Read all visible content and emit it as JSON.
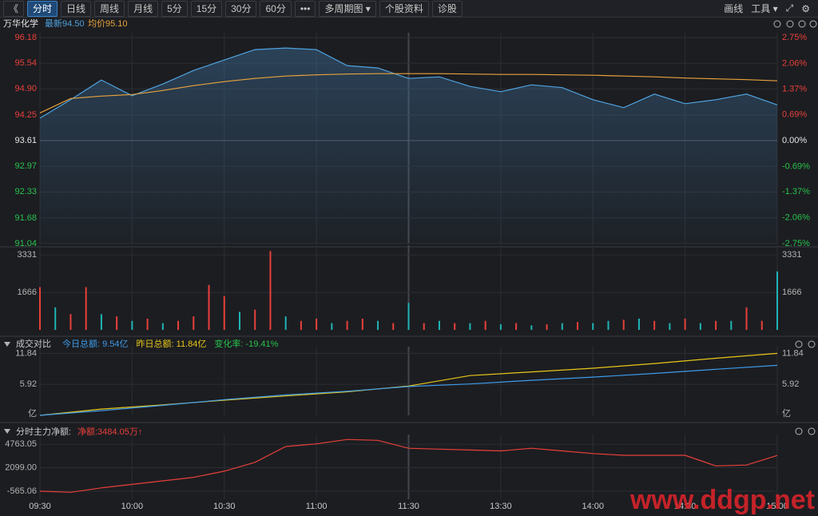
{
  "toolbar": {
    "left": [
      "《",
      "分时",
      "日线",
      "周线",
      "月线",
      "5分",
      "15分",
      "30分",
      "60分",
      "•••",
      "多周期图 ▾",
      "个股资料",
      "诊股"
    ],
    "right": [
      "画线",
      "工具 ▾",
      "⤢",
      "⚙"
    ]
  },
  "stock": {
    "name": "万华化学",
    "latest": "最新94.50",
    "avg": "均价95.10"
  },
  "watermark": "www.ddgp.net",
  "chart_data": [
    {
      "type": "line",
      "x": [
        0,
        10,
        20,
        30,
        40,
        50,
        60,
        70,
        80,
        90,
        100,
        110,
        120,
        130,
        140,
        150,
        160,
        170,
        180,
        190,
        200,
        210,
        220,
        230,
        240
      ],
      "xlim": [
        0,
        240
      ],
      "xticks": [
        {
          "value": 0,
          "label": "09:30"
        },
        {
          "value": 30,
          "label": "10:00"
        },
        {
          "value": 60,
          "label": "10:30"
        },
        {
          "value": 90,
          "label": "11:00"
        },
        {
          "value": 120,
          "label": "11:30"
        },
        {
          "value": 150,
          "label": "13:30"
        },
        {
          "value": 180,
          "label": "14:00"
        },
        {
          "value": 210,
          "label": "14:30"
        },
        {
          "value": 240,
          "label": "15:00"
        }
      ],
      "ylim": [
        91.04,
        96.18
      ],
      "yticks": [
        96.18,
        95.54,
        {
          "value": 94.9,
          "label": "94.90"
        },
        94.25,
        93.61,
        92.97,
        92.33,
        91.68,
        91.04
      ],
      "y2lim": [
        -2.75,
        2.75
      ],
      "y2ticks": [
        {
          "value": 2.75,
          "label": "2.75%"
        },
        {
          "value": 2.06,
          "label": "2.06%"
        },
        {
          "value": 1.37,
          "label": "1.37%"
        },
        {
          "value": 0.69,
          "label": "0.69%"
        },
        {
          "value": 0,
          "label": "0.00%"
        },
        {
          "value": -0.69,
          "label": "-0.69%"
        },
        {
          "value": -1.37,
          "label": "-1.37%"
        },
        {
          "value": -2.06,
          "label": "-2.06%"
        },
        {
          "value": -2.75,
          "label": "-2.75%"
        }
      ],
      "series": [
        {
          "color": "#4fa3e0",
          "values": [
            94.17,
            94.63,
            95.12,
            94.73,
            95.02,
            95.36,
            95.62,
            95.88,
            95.92,
            95.88,
            95.48,
            95.42,
            95.16,
            95.2,
            94.96,
            94.83,
            95.0,
            94.93,
            94.63,
            94.43,
            94.77,
            94.53,
            94.63,
            94.77,
            94.5
          ]
        },
        {
          "color": "#e8a33c",
          "values": [
            94.3,
            94.66,
            94.72,
            94.76,
            94.86,
            94.98,
            95.08,
            95.16,
            95.22,
            95.25,
            95.27,
            95.28,
            95.28,
            95.28,
            95.27,
            95.26,
            95.26,
            95.25,
            95.24,
            95.22,
            95.2,
            95.17,
            95.15,
            95.13,
            95.1
          ]
        }
      ]
    },
    {
      "type": "bar",
      "x": [
        0,
        5,
        10,
        15,
        20,
        25,
        30,
        35,
        40,
        45,
        50,
        55,
        60,
        65,
        70,
        75,
        80,
        85,
        90,
        95,
        100,
        105,
        110,
        115,
        120,
        125,
        130,
        135,
        140,
        145,
        150,
        155,
        160,
        165,
        170,
        175,
        180,
        185,
        190,
        195,
        200,
        205,
        210,
        215,
        220,
        225,
        230,
        235,
        240
      ],
      "xlim": [
        0,
        240
      ],
      "values": [
        1900,
        1000,
        700,
        1900,
        700,
        600,
        400,
        500,
        300,
        400,
        600,
        2000,
        1500,
        800,
        900,
        3500,
        600,
        400,
        500,
        300,
        400,
        500,
        400,
        300,
        1200,
        300,
        400,
        300,
        300,
        400,
        250,
        300,
        200,
        250,
        300,
        350,
        300,
        400,
        450,
        500,
        400,
        300,
        500,
        300,
        400,
        400,
        1000,
        400,
        2600
      ],
      "colors": [
        "#e8403a",
        "#1fb5b5",
        "#e8403a",
        "#e8403a",
        "#1fb5b5",
        "#e8403a",
        "#1fb5b5",
        "#e8403a",
        "#1fb5b5",
        "#e8403a",
        "#e8403a",
        "#e8403a",
        "#e8403a",
        "#1fb5b5",
        "#e8403a",
        "#e8403a",
        "#1fb5b5",
        "#e8403a",
        "#e8403a",
        "#1fb5b5",
        "#e8403a",
        "#e8403a",
        "#1fb5b5",
        "#e8403a",
        "#1fb5b5",
        "#e8403a",
        "#1fb5b5",
        "#e8403a",
        "#1fb5b5",
        "#e8403a",
        "#1fb5b5",
        "#e8403a",
        "#1fb5b5",
        "#e8403a",
        "#1fb5b5",
        "#e8403a",
        "#1fb5b5",
        "#1fb5b5",
        "#e8403a",
        "#1fb5b5",
        "#e8403a",
        "#1fb5b5",
        "#e8403a",
        "#1fb5b5",
        "#e8403a",
        "#1fb5b5",
        "#e8403a",
        "#e8403a",
        "#1fb5b5"
      ],
      "ylim": [
        0,
        3550
      ],
      "yticks": [
        3331,
        1666
      ]
    },
    {
      "type": "line",
      "title": "成交对比",
      "labels": [
        "今日总额: 9.54亿",
        "昨日总额: 11.84亿",
        "变化率: -19.41%"
      ],
      "x": [
        0,
        20,
        40,
        60,
        80,
        100,
        120,
        140,
        160,
        180,
        200,
        220,
        240
      ],
      "xlim": [
        0,
        240
      ],
      "ylim": [
        0,
        12.2
      ],
      "yticks": [
        11.84,
        5.92
      ],
      "unit": "亿",
      "series": [
        {
          "color": "#3d9be9",
          "values": [
            0,
            0.9,
            1.9,
            3.0,
            3.9,
            4.6,
            5.5,
            6.0,
            6.7,
            7.3,
            8.0,
            8.8,
            9.54
          ]
        },
        {
          "color": "#e6c619",
          "values": [
            0,
            1.2,
            2.0,
            2.9,
            3.7,
            4.5,
            5.6,
            7.6,
            8.3,
            9.0,
            9.9,
            10.9,
            11.84
          ]
        }
      ]
    },
    {
      "type": "line",
      "title": "分时主力净额:",
      "labels": [
        "净额:3484.05万↑"
      ],
      "x": [
        0,
        10,
        20,
        30,
        40,
        50,
        60,
        70,
        80,
        90,
        100,
        110,
        120,
        130,
        140,
        150,
        160,
        170,
        180,
        190,
        200,
        210,
        220,
        230,
        240
      ],
      "xlim": [
        0,
        240
      ],
      "ylim": [
        -1485,
        5315
      ],
      "yticks": [
        4763.05,
        {
          "value": 2099,
          "label": "2099.00"
        },
        -565.06
      ],
      "series": [
        {
          "color": "#e8403a",
          "values": [
            -565,
            -700,
            -200,
            200,
            600,
            1000,
            1700,
            2700,
            4500,
            4800,
            5300,
            5200,
            4300,
            4200,
            4100,
            4000,
            4300,
            4000,
            3700,
            3500,
            3500,
            3500,
            2300,
            2400,
            3484.05
          ]
        }
      ]
    }
  ]
}
